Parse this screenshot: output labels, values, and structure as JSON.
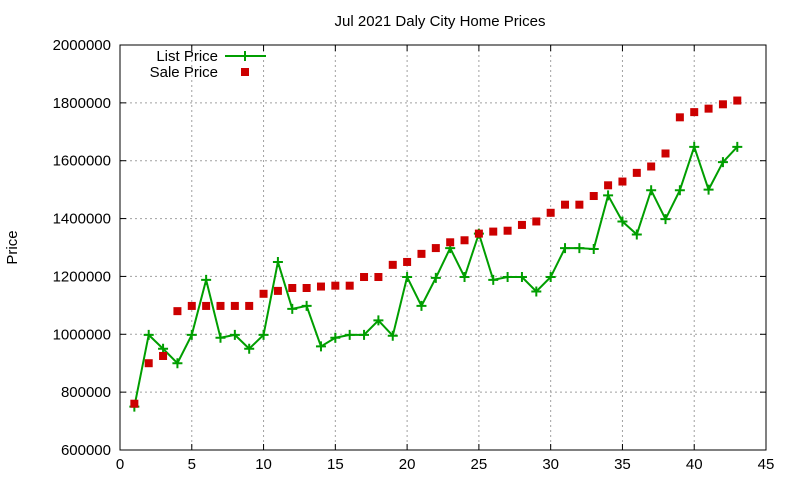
{
  "chart_data": {
    "type": "line",
    "title": "Jul 2021 Daly City Home Prices",
    "xlabel": "",
    "ylabel": "Price",
    "xlim": [
      0,
      45
    ],
    "ylim": [
      600000,
      2000000
    ],
    "x_ticks": [
      0,
      5,
      10,
      15,
      20,
      25,
      30,
      35,
      40,
      45
    ],
    "y_ticks": [
      600000,
      800000,
      1000000,
      1200000,
      1400000,
      1600000,
      1800000,
      2000000
    ],
    "grid": true,
    "legend_position": "top-left",
    "x": [
      1,
      2,
      3,
      4,
      5,
      6,
      7,
      8,
      9,
      10,
      11,
      12,
      13,
      14,
      15,
      16,
      17,
      18,
      19,
      20,
      21,
      22,
      23,
      24,
      25,
      26,
      27,
      28,
      29,
      30,
      31,
      32,
      33,
      34,
      35,
      36,
      37,
      38,
      39,
      40,
      41,
      42,
      43
    ],
    "series": [
      {
        "name": "List Price",
        "style": "linespoints",
        "color": "#009e00",
        "marker": "plus",
        "values": [
          750000,
          998000,
          950000,
          900000,
          998000,
          1188000,
          988000,
          998000,
          950000,
          998000,
          1250000,
          1088000,
          1098000,
          958000,
          988000,
          998000,
          998000,
          1048000,
          995000,
          1198000,
          1098000,
          1195000,
          1298000,
          1198000,
          1348000,
          1188000,
          1198000,
          1198000,
          1148000,
          1198000,
          1298000,
          1298000,
          1295000,
          1480000,
          1390000,
          1345000,
          1498000,
          1398000,
          1498000,
          1648000,
          1500000,
          1595000,
          1648000
        ]
      },
      {
        "name": "Sale Price",
        "style": "points",
        "color": "#cc0000",
        "marker": "square",
        "values": [
          760000,
          900000,
          925000,
          1080000,
          1098000,
          1098000,
          1098000,
          1098000,
          1098000,
          1140000,
          1150000,
          1160000,
          1160000,
          1165000,
          1168000,
          1168000,
          1198000,
          1198000,
          1240000,
          1250000,
          1278000,
          1298000,
          1318000,
          1325000,
          1348000,
          1355000,
          1358000,
          1378000,
          1390000,
          1420000,
          1448000,
          1448000,
          1478000,
          1515000,
          1528000,
          1558000,
          1580000,
          1625000,
          1750000,
          1768000,
          1780000,
          1795000,
          1808000
        ]
      }
    ]
  }
}
